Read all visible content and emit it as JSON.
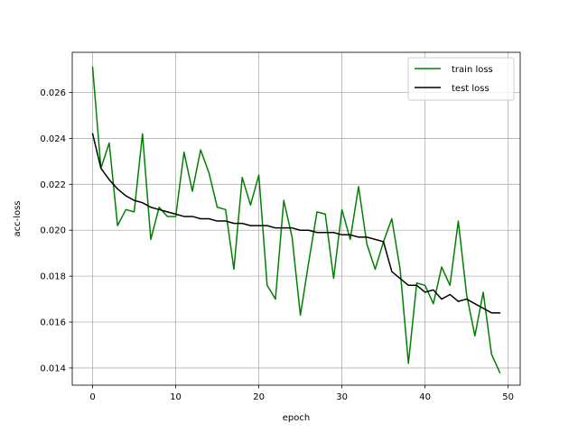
{
  "chart_data": {
    "type": "line",
    "title": "",
    "xlabel": "epoch",
    "ylabel": "acc-loss",
    "xlim": [
      -2.45,
      51.45
    ],
    "ylim": [
      0.01325,
      0.02775
    ],
    "xticks": [
      0,
      10,
      20,
      30,
      40,
      50
    ],
    "yticks": [
      0.014,
      0.016,
      0.018,
      0.02,
      0.022,
      0.024,
      0.026
    ],
    "xtick_labels": [
      "0",
      "10",
      "20",
      "30",
      "40",
      "50"
    ],
    "ytick_labels": [
      "0.014",
      "0.016",
      "0.018",
      "0.020",
      "0.022",
      "0.024",
      "0.026"
    ],
    "grid": true,
    "legend_position": "top-right",
    "series": [
      {
        "name": "train loss",
        "color": "#008000",
        "x": [
          0,
          1,
          2,
          3,
          4,
          5,
          6,
          7,
          8,
          9,
          10,
          11,
          12,
          13,
          14,
          15,
          16,
          17,
          18,
          19,
          20,
          21,
          22,
          23,
          24,
          25,
          26,
          27,
          28,
          29,
          30,
          31,
          32,
          33,
          34,
          35,
          36,
          37,
          38,
          39,
          40,
          41,
          42,
          43,
          44,
          45,
          46,
          47,
          48,
          49
        ],
        "values": [
          0.0271,
          0.0227,
          0.0238,
          0.0202,
          0.0209,
          0.0208,
          0.0242,
          0.0196,
          0.021,
          0.0206,
          0.0206,
          0.0234,
          0.0217,
          0.0235,
          0.0225,
          0.021,
          0.0209,
          0.0183,
          0.0223,
          0.0211,
          0.0224,
          0.0176,
          0.017,
          0.0213,
          0.0197,
          0.0163,
          0.0186,
          0.0208,
          0.0207,
          0.0179,
          0.0209,
          0.0196,
          0.0219,
          0.0194,
          0.0183,
          0.0195,
          0.0205,
          0.0183,
          0.0142,
          0.0177,
          0.0176,
          0.0168,
          0.0184,
          0.0176,
          0.0204,
          0.0172,
          0.0154,
          0.0173,
          0.0146,
          0.0138
        ]
      },
      {
        "name": "test loss",
        "color": "#000000",
        "x": [
          0,
          1,
          2,
          3,
          4,
          5,
          6,
          7,
          8,
          9,
          10,
          11,
          12,
          13,
          14,
          15,
          16,
          17,
          18,
          19,
          20,
          21,
          22,
          23,
          24,
          25,
          26,
          27,
          28,
          29,
          30,
          31,
          32,
          33,
          34,
          35,
          36,
          37,
          38,
          39,
          40,
          41,
          42,
          43,
          44,
          45,
          46,
          47,
          48,
          49
        ],
        "values": [
          0.0242,
          0.0227,
          0.0222,
          0.0218,
          0.0215,
          0.0213,
          0.0212,
          0.021,
          0.0209,
          0.0208,
          0.0207,
          0.0206,
          0.0206,
          0.0205,
          0.0205,
          0.0204,
          0.0204,
          0.0203,
          0.0203,
          0.0202,
          0.0202,
          0.0202,
          0.0201,
          0.0201,
          0.0201,
          0.02,
          0.02,
          0.0199,
          0.0199,
          0.0199,
          0.0198,
          0.0198,
          0.0197,
          0.0197,
          0.0196,
          0.0195,
          0.0182,
          0.0179,
          0.0176,
          0.0176,
          0.0173,
          0.0174,
          0.017,
          0.0172,
          0.0169,
          0.017,
          0.0168,
          0.0166,
          0.0164,
          0.0164
        ]
      }
    ]
  }
}
